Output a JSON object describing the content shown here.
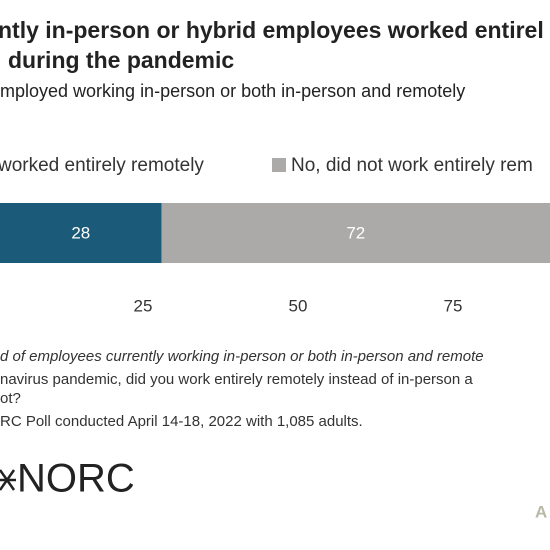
{
  "chart_data": {
    "type": "stacked-bar",
    "title": [
      "ntly in-person or hybrid employees worked entirel",
      "during the pandemic"
    ],
    "subtitle": "mployed working in-person or both in-person and remotely",
    "series": [
      {
        "name": "worked entirely remotely",
        "color": "#1b5a78",
        "values": [
          28
        ]
      },
      {
        "name": "No, did not work entirely rem",
        "color": "#acaaa8",
        "values": [
          72
        ]
      }
    ],
    "xlim": [
      0,
      100
    ],
    "xticks": [
      25,
      50,
      75
    ],
    "notes": [
      "d of employees currently working in-person or both in-person and remote",
      "navirus pandemic, did you work entirely remotely instead of in-person a",
      "ot?"
    ],
    "source": "RC Poll conducted April 14-18, 2022 with 1,085 adults.",
    "logo": "NORC",
    "credit": "A"
  }
}
